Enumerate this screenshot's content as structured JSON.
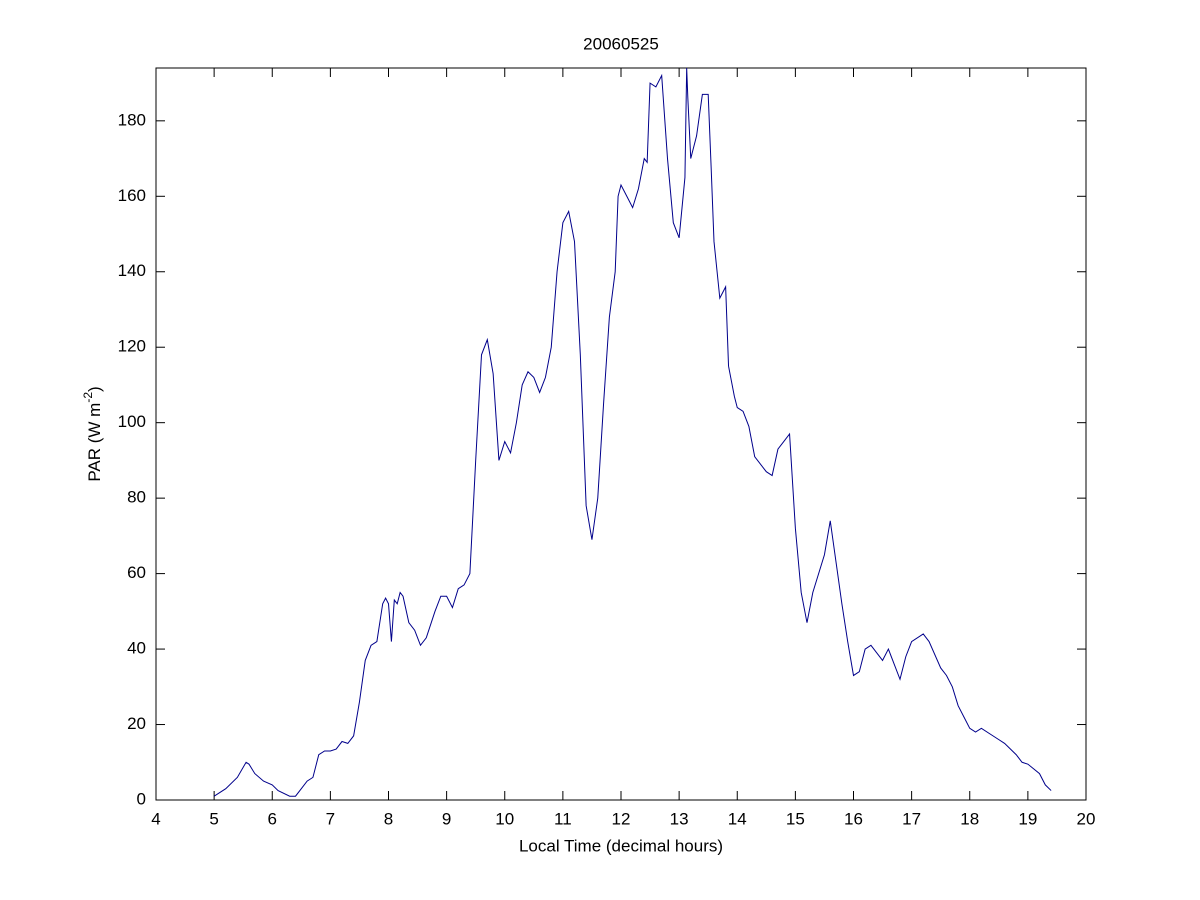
{
  "chart_data": {
    "type": "line",
    "title": "20060525",
    "xlabel": "Local Time (decimal hours)",
    "ylabel": {
      "text": "PAR (W m",
      "sup": "-2",
      "end": ")"
    },
    "xlim": [
      4,
      20
    ],
    "ylim": [
      0,
      194
    ],
    "xticks": [
      4,
      5,
      6,
      7,
      8,
      9,
      10,
      11,
      12,
      13,
      14,
      15,
      16,
      17,
      18,
      19,
      20
    ],
    "yticks": [
      0,
      20,
      40,
      60,
      80,
      100,
      120,
      140,
      160,
      180
    ],
    "grid": false,
    "x": [
      5.0,
      5.2,
      5.4,
      5.55,
      5.6,
      5.7,
      5.85,
      6.0,
      6.1,
      6.3,
      6.4,
      6.5,
      6.6,
      6.7,
      6.8,
      6.9,
      7.0,
      7.1,
      7.2,
      7.3,
      7.4,
      7.5,
      7.6,
      7.7,
      7.8,
      7.9,
      7.95,
      8.0,
      8.05,
      8.1,
      8.15,
      8.2,
      8.25,
      8.35,
      8.45,
      8.55,
      8.65,
      8.8,
      8.9,
      9.0,
      9.1,
      9.2,
      9.3,
      9.4,
      9.5,
      9.6,
      9.7,
      9.8,
      9.9,
      10.0,
      10.1,
      10.2,
      10.3,
      10.4,
      10.5,
      10.6,
      10.7,
      10.8,
      10.9,
      11.0,
      11.1,
      11.2,
      11.3,
      11.4,
      11.5,
      11.6,
      11.7,
      11.8,
      11.9,
      11.95,
      12.0,
      12.1,
      12.2,
      12.3,
      12.4,
      12.45,
      12.5,
      12.6,
      12.7,
      12.8,
      12.9,
      13.0,
      13.1,
      13.13,
      13.15,
      13.2,
      13.3,
      13.4,
      13.5,
      13.55,
      13.6,
      13.7,
      13.8,
      13.85,
      13.95,
      14.0,
      14.1,
      14.2,
      14.3,
      14.5,
      14.6,
      14.7,
      14.8,
      14.9,
      15.0,
      15.1,
      15.2,
      15.3,
      15.4,
      15.5,
      15.6,
      15.7,
      15.8,
      15.9,
      16.0,
      16.1,
      16.2,
      16.3,
      16.5,
      16.6,
      16.7,
      16.8,
      16.9,
      17.0,
      17.2,
      17.3,
      17.5,
      17.6,
      17.7,
      17.8,
      17.9,
      18.0,
      18.1,
      18.2,
      18.4,
      18.5,
      18.6,
      18.8,
      18.9,
      19.0,
      19.2,
      19.3,
      19.4
    ],
    "series": [
      {
        "name": "PAR",
        "color": "#00008b",
        "values": [
          1,
          3,
          6,
          10,
          9.5,
          7,
          5,
          4,
          2.5,
          1,
          1,
          3,
          5,
          6,
          12,
          13,
          13,
          13.5,
          15.5,
          15,
          17,
          26,
          37,
          41,
          42,
          52,
          53.5,
          52,
          42,
          53,
          52,
          55,
          54,
          47,
          45,
          41,
          43,
          50,
          54,
          54,
          51,
          56,
          57,
          60,
          90,
          118,
          122,
          113,
          90,
          95,
          92,
          100,
          110,
          113.5,
          112,
          108,
          112,
          120,
          140,
          153,
          156,
          148,
          118,
          78,
          69,
          80,
          105,
          128,
          140,
          160,
          163,
          160,
          157,
          162,
          170,
          169,
          190,
          189,
          192,
          170,
          153,
          149,
          165,
          194,
          186,
          170,
          176,
          187,
          187,
          168,
          148,
          133,
          136,
          115,
          107,
          104,
          103,
          99,
          91,
          87,
          86,
          93,
          95,
          97,
          72,
          55,
          47,
          55,
          60,
          65,
          74,
          63,
          52,
          42,
          33,
          34,
          40,
          41,
          37,
          40,
          36,
          32,
          38,
          42,
          44,
          42,
          35,
          33,
          30,
          25,
          22,
          19,
          18,
          19,
          17,
          16,
          15,
          12,
          10,
          9.5,
          7,
          4,
          2.5
        ]
      }
    ]
  }
}
